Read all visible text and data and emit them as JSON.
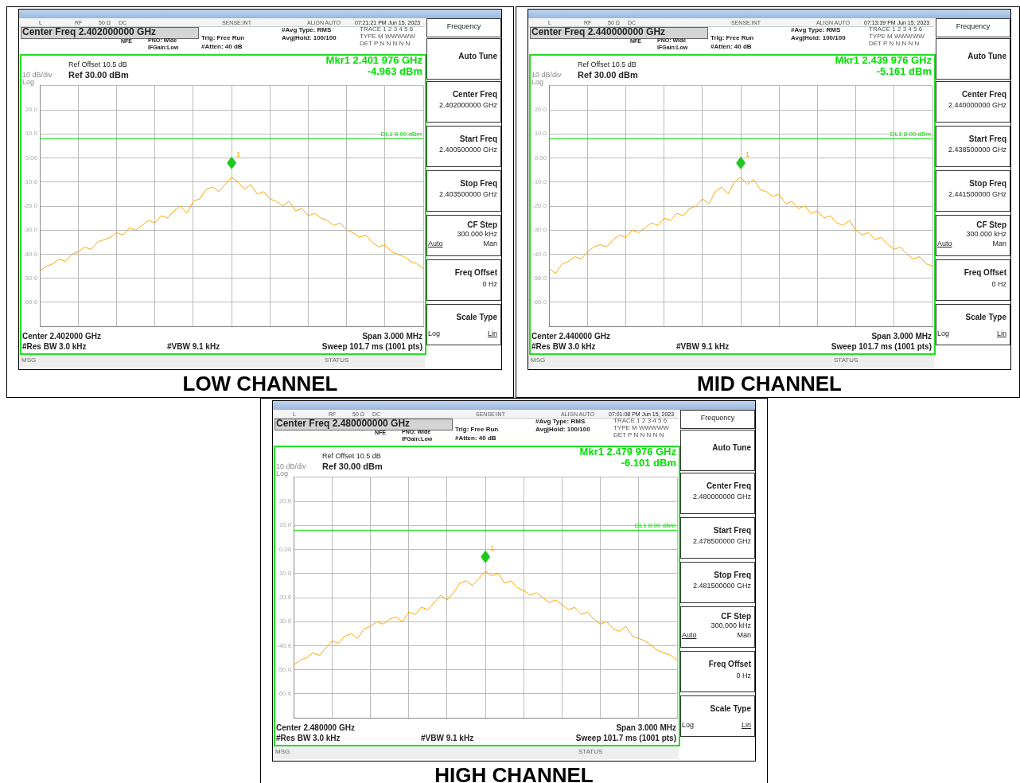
{
  "chart_data": [
    {
      "type": "line",
      "title": "LOW CHANNEL",
      "categories": [
        null,
        null,
        null,
        null,
        null,
        null,
        null,
        null,
        null,
        null,
        null,
        null,
        null,
        null,
        null,
        null,
        null,
        null,
        null,
        null,
        null,
        null,
        null,
        null,
        null,
        null,
        null,
        null,
        null,
        null,
        null,
        null,
        null,
        null,
        null,
        null,
        null,
        null,
        null,
        null,
        null,
        null,
        null,
        null,
        null,
        null,
        null,
        null,
        null,
        null,
        null,
        null,
        null,
        null,
        null,
        null,
        null,
        null,
        null,
        null,
        null
      ],
      "series": [
        {
          "color": "#ffa500",
          "values": [
            -47,
            -45,
            -44,
            -42,
            -43,
            -40,
            -39,
            -37,
            -38,
            -35,
            -34,
            -33,
            -31,
            -32,
            -29,
            -30,
            -28,
            -26,
            -27,
            -24,
            -25,
            -22,
            -20,
            -23,
            -18,
            -17,
            -13,
            -12,
            -14,
            -11,
            -8,
            -10,
            -13,
            -11,
            -15,
            -14,
            -17,
            -18,
            -20,
            -18,
            -22,
            -21,
            -24,
            -23,
            -25,
            -26,
            -28,
            -27,
            -30,
            -31,
            -33,
            -32,
            -35,
            -37,
            -36,
            -39,
            -40,
            -41,
            -43,
            -44,
            -46
          ]
        }
      ],
      "ylim": [
        -70,
        30
      ],
      "yticks": [
        {
          "value": 30,
          "label": null
        },
        {
          "value": 20,
          "label": "20.0"
        },
        {
          "value": 10,
          "label": "10.0"
        },
        {
          "value": 0,
          "label": "0.00"
        },
        {
          "value": -10,
          "label": "-10.0"
        },
        {
          "value": -20,
          "label": "-20.0"
        },
        {
          "value": -30,
          "label": "-30.0"
        },
        {
          "value": -40,
          "label": "-40.0"
        },
        {
          "value": -50,
          "label": "-50.0"
        },
        {
          "value": -60,
          "label": "-60.0"
        },
        {
          "value": -70,
          "label": null
        }
      ],
      "grid": true,
      "marker": "none",
      "tick_labels": "y",
      "ref_lines": [
        {
          "axis": "y",
          "value": 8,
          "label": "DL1 8.00 dBm",
          "color": "#00e000"
        }
      ],
      "annotations": [
        "L",
        "RF",
        "50 Ω",
        "DC",
        "SENSE:INT",
        "ALIGN AUTO",
        "07:21:21 PM Jun 15, 2023",
        "Center Freq 2.402000000 GHz",
        "NFE",
        "PNO: Wide",
        "IFGain:Low",
        "Trig: Free Run",
        "#Atten: 40 dB",
        "#Avg Type: RMS",
        "Avg|Hold: 100/100",
        "TRACE 1 2 3 4 5 6",
        "TYPE M WWWWW",
        "DET P N N N N N",
        "Ref Offset 10.5 dB",
        "Ref 30.00 dBm",
        "10 dB/div",
        "Log",
        "Mkr1 2.401 976 GHz",
        "-4.963 dBm",
        "Center 2.402000 GHz",
        "Span 3.000 MHz",
        "#Res BW 3.0 kHz",
        "#VBW 9.1 kHz",
        "Sweep  101.7 ms (1001 pts)",
        "MSG",
        "STATUS",
        "Frequency",
        "Auto Tune",
        "Center Freq",
        "2.402000000 GHz",
        "Start Freq",
        "2.400500000 GHz",
        "Stop Freq",
        "2.403500000 GHz",
        "CF Step",
        "300.000 kHz",
        "Auto",
        "Man",
        "Freq Offset",
        "0 Hz",
        "Scale Type",
        "Log",
        "Lin",
        "1"
      ]
    },
    {
      "type": "line",
      "title": "MID CHANNEL",
      "categories": [
        null,
        null,
        null,
        null,
        null,
        null,
        null,
        null,
        null,
        null,
        null,
        null,
        null,
        null,
        null,
        null,
        null,
        null,
        null,
        null,
        null,
        null,
        null,
        null,
        null,
        null,
        null,
        null,
        null,
        null,
        null,
        null,
        null,
        null,
        null,
        null,
        null,
        null,
        null,
        null,
        null,
        null,
        null,
        null,
        null,
        null,
        null,
        null,
        null,
        null,
        null,
        null,
        null,
        null,
        null,
        null,
        null,
        null,
        null,
        null,
        null
      ],
      "series": [
        {
          "color": "#ffa500",
          "values": [
            -46,
            -48,
            -44,
            -43,
            -41,
            -42,
            -39,
            -37,
            -36,
            -37,
            -34,
            -32,
            -33,
            -30,
            -31,
            -29,
            -27,
            -28,
            -25,
            -26,
            -23,
            -24,
            -21,
            -20,
            -17,
            -19,
            -14,
            -12,
            -15,
            -10,
            -8,
            -11,
            -9,
            -13,
            -14,
            -16,
            -15,
            -19,
            -18,
            -21,
            -20,
            -23,
            -22,
            -25,
            -24,
            -27,
            -28,
            -26,
            -30,
            -32,
            -31,
            -34,
            -33,
            -36,
            -38,
            -37,
            -40,
            -42,
            -41,
            -44,
            -45
          ]
        }
      ],
      "ylim": [
        -70,
        30
      ],
      "yticks": [
        {
          "value": 30,
          "label": null
        },
        {
          "value": 20,
          "label": "20.0"
        },
        {
          "value": 10,
          "label": "10.0"
        },
        {
          "value": 0,
          "label": "0.00"
        },
        {
          "value": -10,
          "label": "-10.0"
        },
        {
          "value": -20,
          "label": "-20.0"
        },
        {
          "value": -30,
          "label": "-30.0"
        },
        {
          "value": -40,
          "label": "-40.0"
        },
        {
          "value": -50,
          "label": "-50.0"
        },
        {
          "value": -60,
          "label": "-60.0"
        },
        {
          "value": -70,
          "label": null
        }
      ],
      "grid": true,
      "marker": "none",
      "tick_labels": "y",
      "ref_lines": [
        {
          "axis": "y",
          "value": 8,
          "label": "DL1 8.00 dBm",
          "color": "#00e000"
        }
      ],
      "annotations": [
        "L",
        "RF",
        "50 Ω",
        "DC",
        "SENSE:INT",
        "ALIGN AUTO",
        "07:13:39 PM Jun 15, 2023",
        "Center Freq 2.440000000 GHz",
        "NFE",
        "PNO: Wide",
        "IFGain:Low",
        "Trig: Free Run",
        "#Atten: 40 dB",
        "#Avg Type: RMS",
        "Avg|Hold: 100/100",
        "TRACE 1 2 3 4 5 6",
        "TYPE M WWWWW",
        "DET P N N N N N",
        "Ref Offset 10.5 dB",
        "Ref 30.00 dBm",
        "10 dB/div",
        "Log",
        "Mkr1 2.439 976 GHz",
        "-5.161 dBm",
        "Center 2.440000 GHz",
        "Span 3.000 MHz",
        "#Res BW 3.0 kHz",
        "#VBW 9.1 kHz",
        "Sweep  101.7 ms (1001 pts)",
        "MSG",
        "STATUS",
        "Frequency",
        "Auto Tune",
        "Center Freq",
        "2.440000000 GHz",
        "Start Freq",
        "2.438500000 GHz",
        "Stop Freq",
        "2.441500000 GHz",
        "CF Step",
        "300.000 kHz",
        "Auto",
        "Man",
        "Freq Offset",
        "0 Hz",
        "Scale Type",
        "Log",
        "Lin",
        "1"
      ]
    },
    {
      "type": "line",
      "title": "HIGH CHANNEL",
      "categories": [
        null,
        null,
        null,
        null,
        null,
        null,
        null,
        null,
        null,
        null,
        null,
        null,
        null,
        null,
        null,
        null,
        null,
        null,
        null,
        null,
        null,
        null,
        null,
        null,
        null,
        null,
        null,
        null,
        null,
        null,
        null,
        null,
        null,
        null,
        null,
        null,
        null,
        null,
        null,
        null,
        null,
        null,
        null,
        null,
        null,
        null,
        null,
        null,
        null,
        null,
        null,
        null,
        null,
        null,
        null,
        null,
        null,
        null,
        null,
        null,
        null
      ],
      "series": [
        {
          "color": "#ffa500",
          "values": [
            -48,
            -46,
            -45,
            -43,
            -44,
            -41,
            -38,
            -39,
            -36,
            -35,
            -37,
            -33,
            -32,
            -30,
            -31,
            -29,
            -28,
            -30,
            -26,
            -27,
            -24,
            -25,
            -22,
            -19,
            -21,
            -18,
            -14,
            -13,
            -15,
            -12,
            -9,
            -11,
            -10,
            -14,
            -13,
            -16,
            -17,
            -19,
            -18,
            -20,
            -22,
            -21,
            -23,
            -25,
            -24,
            -27,
            -26,
            -29,
            -31,
            -30,
            -33,
            -34,
            -32,
            -36,
            -37,
            -38,
            -40,
            -42,
            -43,
            -44,
            -46
          ]
        }
      ],
      "ylim": [
        -70,
        30
      ],
      "yticks": [
        {
          "value": 30,
          "label": null
        },
        {
          "value": 20,
          "label": "20.0"
        },
        {
          "value": 10,
          "label": "10.0"
        },
        {
          "value": 0,
          "label": "0.00"
        },
        {
          "value": -10,
          "label": "-10.0"
        },
        {
          "value": -20,
          "label": "-20.0"
        },
        {
          "value": -30,
          "label": "-30.0"
        },
        {
          "value": -40,
          "label": "-40.0"
        },
        {
          "value": -50,
          "label": "-50.0"
        },
        {
          "value": -60,
          "label": "-60.0"
        },
        {
          "value": -70,
          "label": null
        }
      ],
      "grid": true,
      "marker": "none",
      "tick_labels": "y",
      "ref_lines": [
        {
          "axis": "y",
          "value": 8,
          "label": "DL1 8.00 dBm",
          "color": "#00e000"
        }
      ],
      "annotations": [
        "L",
        "RF",
        "50 Ω",
        "DC",
        "SENSE:INT",
        "ALIGN AUTO",
        "07:01:08 PM Jun 15, 2023",
        "Center Freq 2.480000000 GHz",
        "NFE",
        "PNO: Wide",
        "IFGain:Low",
        "Trig: Free Run",
        "#Atten: 40 dB",
        "#Avg Type: RMS",
        "Avg|Hold: 100/100",
        "TRACE 1 2 3 4 5 6",
        "TYPE M WWWWW",
        "DET P N N N N N",
        "Ref Offset 10.5 dB",
        "Ref 30.00 dBm",
        "10 dB/div",
        "Log",
        "Mkr1 2.479 976 GHz",
        "-6.101 dBm",
        "Center 2.480000 GHz",
        "Span 3.000 MHz",
        "#Res BW 3.0 kHz",
        "#VBW 9.1 kHz",
        "Sweep  101.7 ms (1001 pts)",
        "MSG",
        "STATUS",
        "Frequency",
        "Auto Tune",
        "Center Freq",
        "2.480000000 GHz",
        "Start Freq",
        "2.478500000 GHz",
        "Stop Freq",
        "2.481500000 GHz",
        "CF Step",
        "300.000 kHz",
        "Auto",
        "Man",
        "Freq Offset",
        "0 Hz",
        "Scale Type",
        "Log",
        "Lin",
        "1"
      ]
    }
  ]
}
